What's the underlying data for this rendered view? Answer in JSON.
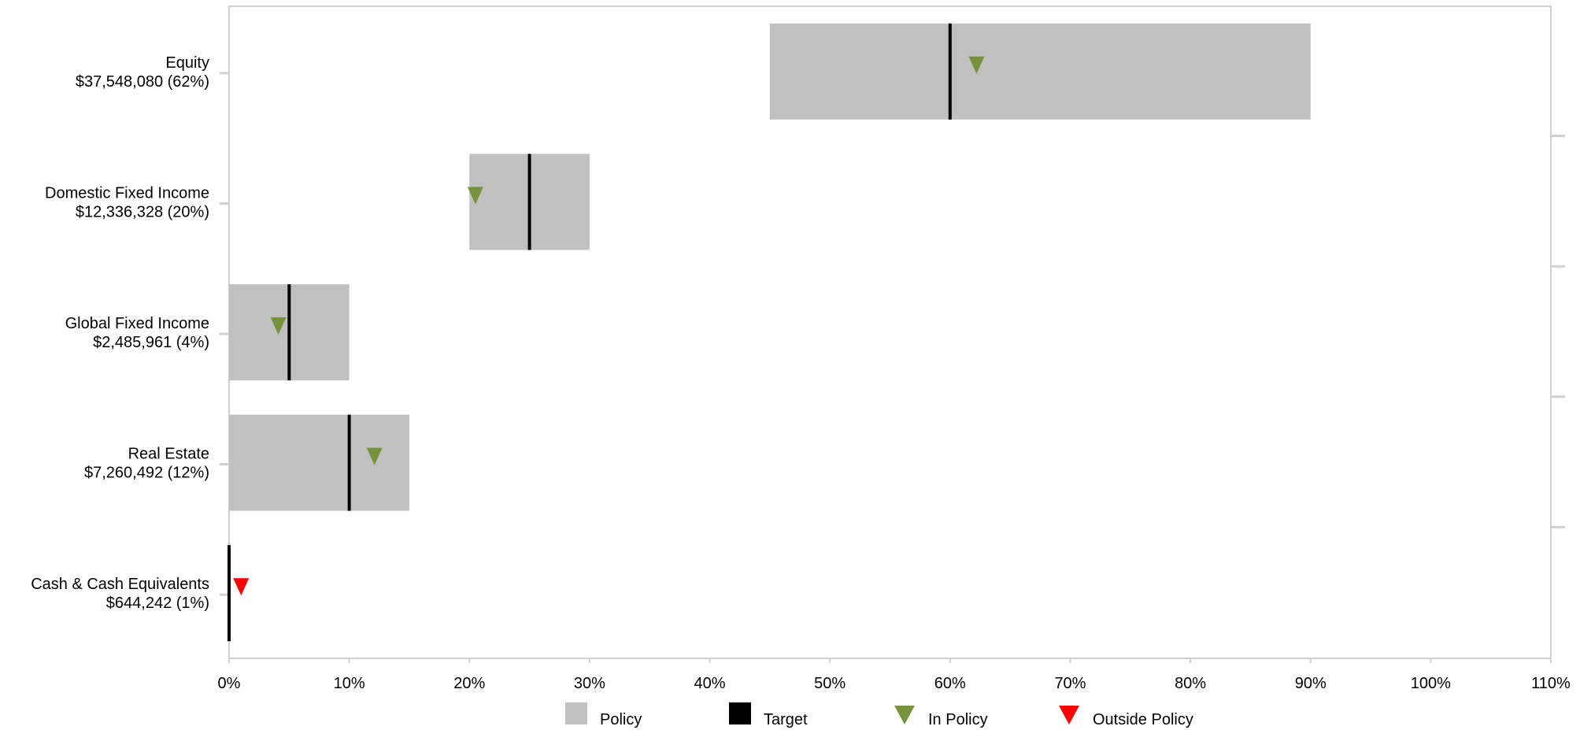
{
  "chart_data": {
    "type": "bullet",
    "orientation": "horizontal",
    "x_axis": {
      "min": 0,
      "max": 110,
      "ticks": [
        0,
        10,
        20,
        30,
        40,
        50,
        60,
        70,
        80,
        90,
        100,
        110
      ],
      "tick_labels": [
        "0%",
        "10%",
        "20%",
        "30%",
        "40%",
        "50%",
        "60%",
        "70%",
        "80%",
        "90%",
        "100%",
        "110%"
      ]
    },
    "categories": [
      {
        "name": "Equity",
        "value_label": "$37,548,080 (62%)",
        "actual": 62.2,
        "policy_min": 45,
        "policy_max": 90,
        "target": 60,
        "status": "in"
      },
      {
        "name": "Domestic Fixed Income",
        "value_label": "$12,336,328 (20%)",
        "actual": 20.5,
        "policy_min": 20,
        "policy_max": 30,
        "target": 25,
        "status": "in"
      },
      {
        "name": "Global Fixed Income",
        "value_label": "$2,485,961 (4%)",
        "actual": 4.1,
        "policy_min": 0,
        "policy_max": 10,
        "target": 5,
        "status": "in"
      },
      {
        "name": "Real Estate",
        "value_label": "$7,260,492 (12%)",
        "actual": 12.1,
        "policy_min": 0,
        "policy_max": 15,
        "target": 10,
        "status": "in"
      },
      {
        "name": "Cash & Cash Equivalents",
        "value_label": "$644,242 (1%)",
        "actual": 1.0,
        "policy_min": 0,
        "policy_max": 0,
        "target": 0,
        "status": "out"
      }
    ],
    "legend": {
      "placement": "bottom",
      "items": [
        {
          "key": "policy",
          "label": "Policy",
          "shape": "square",
          "color": "#c0c0c0"
        },
        {
          "key": "target",
          "label": "Target",
          "shape": "square",
          "color": "#000000"
        },
        {
          "key": "in",
          "label": "In Policy",
          "shape": "triangle-down",
          "color": "#76933c"
        },
        {
          "key": "out",
          "label": "Outside Policy",
          "shape": "triangle-down",
          "color": "#ff0000"
        }
      ]
    },
    "colors": {
      "policy": "#c0c0c0",
      "target": "#000000",
      "in_policy": "#76933c",
      "outside_policy": "#ff0000",
      "frame": "#d0d0d0"
    },
    "grid": false
  }
}
